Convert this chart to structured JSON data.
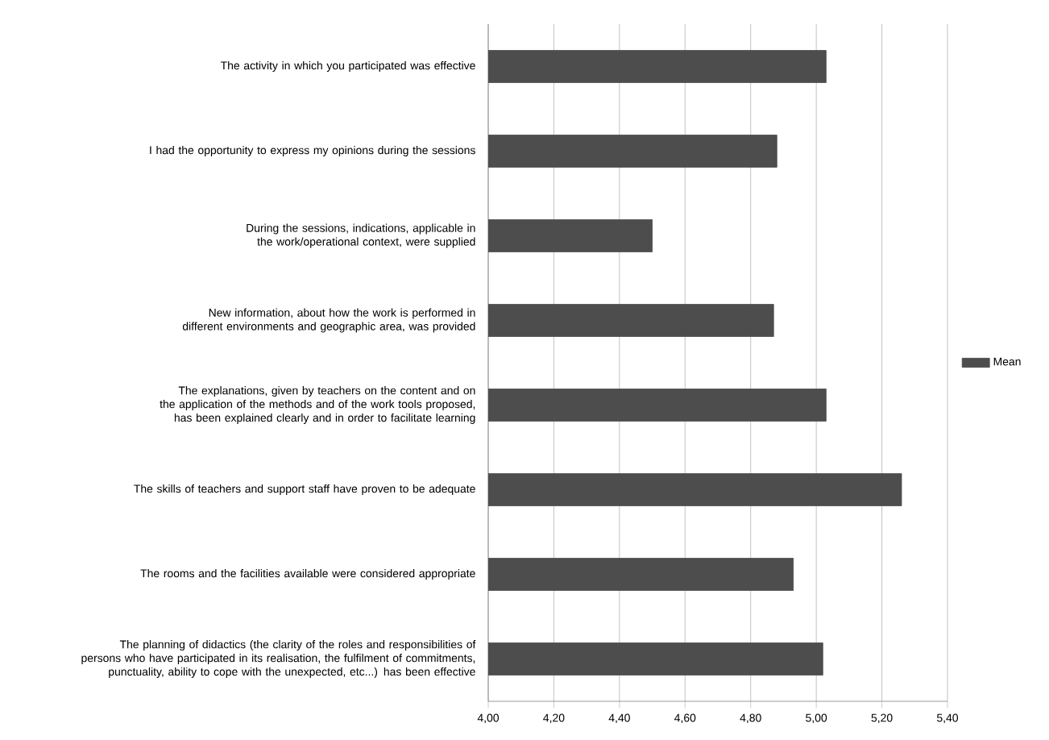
{
  "chart_data": {
    "type": "bar",
    "orientation": "horizontal",
    "categories": [
      "The activity in which you participated was effective",
      "I had the opportunity to express my opinions during the sessions",
      "During the sessions, indications, applicable in the work/operational context, were supplied",
      "New information, about how the work is performed in different environments and geographic area, was provided",
      "The explanations, given by teachers on the content and on the application of the methods and of the work tools proposed, has been explained clearly and in order to facilitate learning",
      "The skills of teachers and support staff have proven to be adequate",
      "The rooms and the facilities available were considered appropriate",
      "The planning of didactics (the clarity of the roles and responsibilities of persons who have participated in its realisation, the fulfilment of commitments, punctuality, ability to cope with the unexpected, etc...) has been effective"
    ],
    "series": [
      {
        "name": "Mean",
        "color": "#4d4d4d",
        "values": [
          5.03,
          4.88,
          4.5,
          4.87,
          5.03,
          5.26,
          4.93,
          5.02
        ]
      }
    ],
    "xlim": [
      4.0,
      5.4
    ],
    "xticks": [
      {
        "value": 4.0,
        "label": "4,00"
      },
      {
        "value": 4.2,
        "label": "4,20"
      },
      {
        "value": 4.4,
        "label": "4,40"
      },
      {
        "value": 4.6,
        "label": "4,60"
      },
      {
        "value": 4.8,
        "label": "4,80"
      },
      {
        "value": 5.0,
        "label": "5,00"
      },
      {
        "value": 5.2,
        "label": "5,20"
      },
      {
        "value": 5.4,
        "label": "5,40"
      }
    ],
    "grid": "x",
    "legend": "right"
  }
}
